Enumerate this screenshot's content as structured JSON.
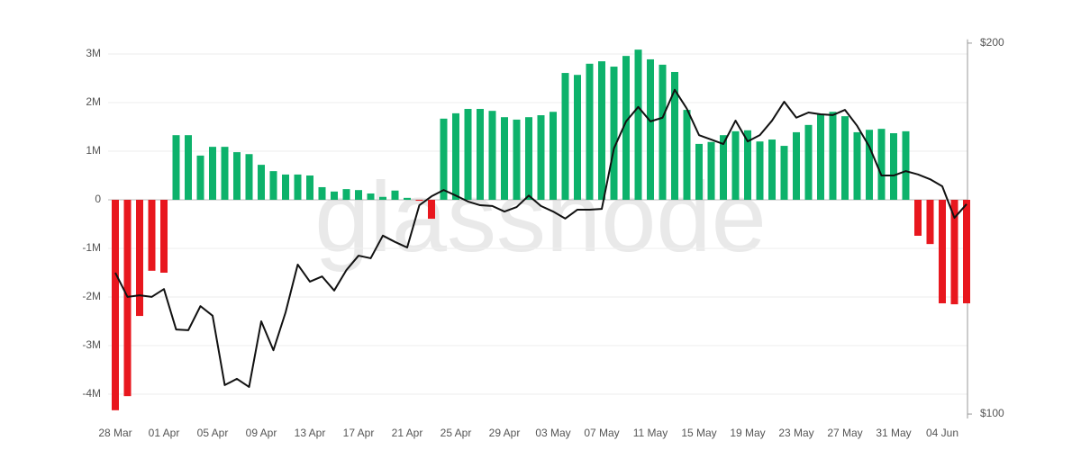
{
  "chart_data": {
    "type": "bar_line",
    "watermark": "glassnode",
    "categories": [
      "28 Mar",
      null,
      null,
      null,
      "01 Apr",
      null,
      null,
      null,
      "05 Apr",
      null,
      null,
      null,
      "09 Apr",
      null,
      null,
      null,
      "13 Apr",
      null,
      null,
      null,
      "17 Apr",
      null,
      null,
      null,
      "21 Apr",
      null,
      null,
      null,
      "25 Apr",
      null,
      null,
      null,
      "29 Apr",
      null,
      null,
      null,
      "03 May",
      null,
      null,
      null,
      "07 May",
      null,
      null,
      null,
      "11 May",
      null,
      null,
      null,
      "15 May",
      null,
      null,
      null,
      "19 May",
      null,
      null,
      null,
      "23 May",
      null,
      null,
      null,
      "27 May",
      null,
      null,
      null,
      "31 May",
      null,
      null,
      null,
      "04 Jun",
      null,
      null
    ],
    "positive_color": "#0db26b",
    "negative_color": "#e8171e",
    "series": [
      {
        "values": [
          -4330000,
          -4040000,
          -2390000,
          -1460000,
          -1500000,
          1330000,
          1330000,
          910000,
          1090000,
          1090000,
          980000,
          940000,
          720000,
          590000,
          520000,
          520000,
          500000,
          260000,
          170000,
          220000,
          200000,
          130000,
          60000,
          190000,
          40000,
          -20000,
          -390000,
          1670000,
          1780000,
          1870000,
          1870000,
          1830000,
          1700000,
          1650000,
          1700000,
          1740000,
          1810000,
          2610000,
          2570000,
          2800000,
          2850000,
          2740000,
          2960000,
          3090000,
          2890000,
          2780000,
          2630000,
          1850000,
          1150000,
          1190000,
          1330000,
          1410000,
          1430000,
          1200000,
          1240000,
          1110000,
          1390000,
          1540000,
          1760000,
          1810000,
          1720000,
          1390000,
          1440000,
          1460000,
          1370000,
          1410000,
          -740000,
          -910000,
          -2130000,
          -2150000,
          -2130000
        ]
      },
      {
        "axis": "y2",
        "color": "#111111",
        "values": [
          138.1,
          131.6,
          132.0,
          131.6,
          133.7,
          122.8,
          122.6,
          129.1,
          126.5,
          107.8,
          109.5,
          107.3,
          125.0,
          117.2,
          127.4,
          140.3,
          135.7,
          137.1,
          133.3,
          138.8,
          142.7,
          142.0,
          148.1,
          146.4,
          144.9,
          156.3,
          158.7,
          160.4,
          158.9,
          157.3,
          156.3,
          156.1,
          154.6,
          155.8,
          158.9,
          156.1,
          154.6,
          152.7,
          155.1,
          155.1,
          155.3,
          171.6,
          178.9,
          182.8,
          178.9,
          179.9,
          187.4,
          182.3,
          175.2,
          174.0,
          172.8,
          179.1,
          173.5,
          175.2,
          179.1,
          184.2,
          179.9,
          181.3,
          180.8,
          180.6,
          182.0,
          177.7,
          172.1,
          164.3,
          164.3,
          165.5,
          164.6,
          163.3,
          161.4,
          152.9,
          156.6
        ]
      }
    ],
    "ylim": [
      -4500000,
      3300000
    ],
    "yticks": [
      {
        "value": -4000000,
        "label": "-4M"
      },
      {
        "value": -3000000,
        "label": "-3M"
      },
      {
        "value": -2000000,
        "label": "-2M"
      },
      {
        "value": -1000000,
        "label": "-1M"
      },
      0,
      {
        "value": 1000000,
        "label": "1M"
      },
      {
        "value": 2000000,
        "label": "2M"
      },
      {
        "value": 3000000,
        "label": "3M"
      }
    ],
    "y2lim": [
      98.8,
      201
    ],
    "y2ticks": [
      {
        "value": 100,
        "label": "$100"
      },
      {
        "value": 200,
        "label": "$200"
      }
    ],
    "grid": true
  }
}
